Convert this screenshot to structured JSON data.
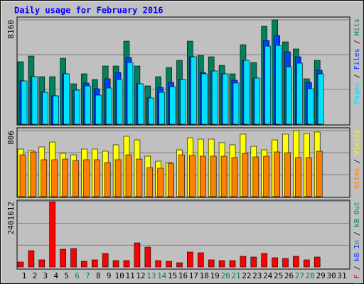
{
  "chart_data": [
    {
      "type": "bar",
      "title": "Daily usage for February 2016",
      "ylim": [
        0,
        8160
      ],
      "yticks": [
        8160
      ],
      "grid": [
        2720,
        5440
      ],
      "legend_separator": " / ",
      "series": [
        {
          "name": "Hits",
          "color": "#00805c",
          "values": [
            4885,
            5329,
            3719,
            3719,
            5162,
            3164,
            3941,
            3497,
            4552,
            4552,
            6495,
            4552,
            2998,
            3719,
            4441,
            4996,
            6495,
            5384,
            5273,
            4607,
            3941,
            6217,
            4829,
            7660,
            8160,
            6439,
            5884,
            3553,
            4996,
            null,
            null
          ]
        },
        {
          "name": "Files",
          "color": "#0040ff",
          "values": [
            3386,
            3719,
            2498,
            2220,
            3941,
            2664,
            3220,
            2776,
            3553,
            4052,
            5218,
            3164,
            2054,
            2887,
            3275,
            3497,
            5273,
            4052,
            4163,
            3941,
            3442,
            4996,
            3608,
            6550,
            6939,
            5662,
            5273,
            3275,
            4219,
            null,
            null
          ]
        },
        {
          "name": "Pages",
          "color": "#00e0ff",
          "values": [
            3386,
            3719,
            2498,
            2220,
            3941,
            2664,
            2998,
            2276,
            2831,
            3497,
            4829,
            3164,
            2054,
            2498,
            2942,
            3497,
            5273,
            3941,
            4163,
            3941,
            3220,
            4996,
            3608,
            6106,
            6162,
            4496,
            4774,
            2776,
            3941,
            null,
            null
          ]
        }
      ]
    },
    {
      "type": "bar",
      "ylim": [
        0,
        806
      ],
      "yticks": [
        806
      ],
      "grid": [
        268.67,
        537.33
      ],
      "legend_separator": " / ",
      "series": [
        {
          "name": "Visits",
          "color": "#ffff00",
          "values": [
            581,
            563,
            607,
            667,
            529,
            511,
            581,
            581,
            555,
            633,
            737,
            693,
            494,
            433,
            416,
            572,
            719,
            702,
            702,
            659,
            633,
            763,
            615,
            572,
            693,
            763,
            806,
            771,
            789,
            null,
            null
          ]
        },
        {
          "name": "Sites",
          "color": "#ff8000",
          "values": [
            511,
            546,
            451,
            451,
            459,
            442,
            451,
            451,
            416,
            451,
            511,
            459,
            355,
            347,
            407,
            511,
            503,
            494,
            494,
            494,
            477,
            529,
            485,
            494,
            546,
            537,
            477,
            477,
            555,
            null,
            null
          ]
        }
      ]
    },
    {
      "type": "bar",
      "ylim": [
        0,
        2401612
      ],
      "yticks": [
        2401612
      ],
      "grid": [
        800537,
        1601075
      ],
      "legend_separator": " / ",
      "categories": [
        "1",
        "2",
        "3",
        "4",
        "5",
        "6",
        "7",
        "8",
        "9",
        "10",
        "11",
        "12",
        "13",
        "14",
        "15",
        "16",
        "17",
        "18",
        "19",
        "20",
        "21",
        "22",
        "23",
        "24",
        "25",
        "26",
        "27",
        "28",
        "29",
        "30",
        "31"
      ],
      "category_colors": [
        "#000000",
        "#000000",
        "#000000",
        "#000000",
        "#000000",
        "#00805c",
        "#00805c",
        "#000000",
        "#000000",
        "#000000",
        "#000000",
        "#000000",
        "#00805c",
        "#00805c",
        "#000000",
        "#000000",
        "#000000",
        "#000000",
        "#000000",
        "#00805c",
        "#00805c",
        "#000000",
        "#000000",
        "#000000",
        "#000000",
        "#000000",
        "#00805c",
        "#00805c",
        "#000000",
        "#000000",
        "#000000"
      ],
      "series": [
        {
          "name": "kB F",
          "color": "#ff0000",
          "values": [
            182728,
            600392,
            261040,
            2401612,
            652600,
            678704,
            208832,
            261040,
            495976,
            234936,
            234936,
            887536,
            730912,
            234936,
            208832,
            156624,
            548184,
            522080,
            261040,
            234936,
            234936,
            391560,
            365456,
            495976,
            339352,
            313248,
            391560,
            261040,
            365456,
            null,
            null
          ]
        }
      ],
      "extra_legend": [
        {
          "name": "kB In",
          "color": "#0040ff"
        },
        {
          "name": "kB Out",
          "color": "#00805c"
        }
      ]
    }
  ]
}
